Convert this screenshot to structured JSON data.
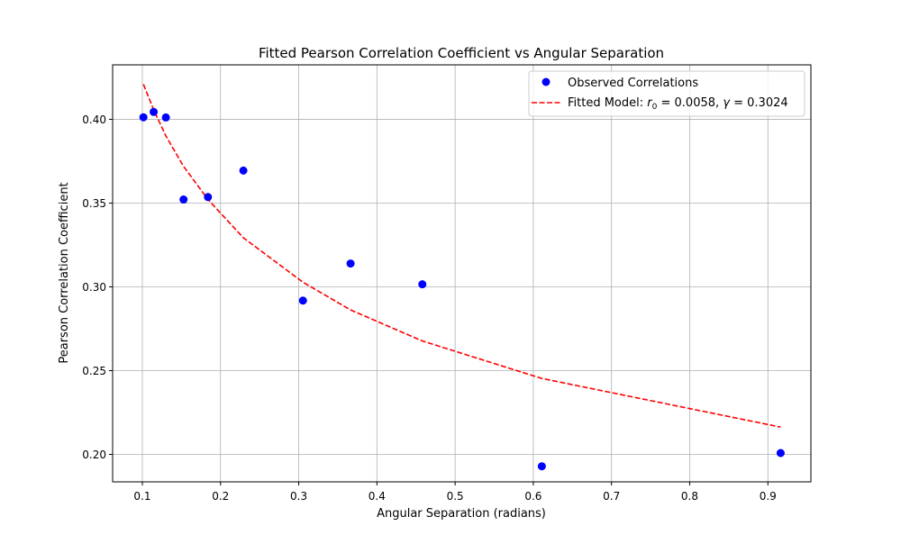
{
  "chart_data": {
    "type": "scatter",
    "title": "Fitted Pearson Correlation Coefficient vs Angular Separation",
    "xlabel": "Angular Separation (radians)",
    "ylabel": "Pearson Correlation Coefficient",
    "xlim": [
      0.062,
      0.955
    ],
    "ylim": [
      0.1836,
      0.4325
    ],
    "xticks": [
      0.1,
      0.2,
      0.3,
      0.4,
      0.5,
      0.6,
      0.7,
      0.8,
      0.9
    ],
    "xtick_labels": [
      "0.1",
      "0.2",
      "0.3",
      "0.4",
      "0.5",
      "0.6",
      "0.7",
      "0.8",
      "0.9"
    ],
    "yticks": [
      0.2,
      0.25,
      0.3,
      0.35,
      0.4
    ],
    "ytick_labels": [
      "0.20",
      "0.25",
      "0.30",
      "0.35",
      "0.40"
    ],
    "grid": true,
    "legend_position": "top-right",
    "series": [
      {
        "name": "Observed Correlations",
        "kind": "scatter",
        "color": "#0000ff",
        "x": [
          0.1014,
          0.1145,
          0.1301,
          0.1527,
          0.1839,
          0.2292,
          0.3054,
          0.3663,
          0.4581,
          0.6109,
          0.9163
        ],
        "y": [
          0.4012,
          0.4044,
          0.4011,
          0.3521,
          0.3536,
          0.3694,
          0.2918,
          0.3139,
          0.3015,
          0.1929,
          0.2008
        ]
      },
      {
        "name": "Fitted Model",
        "kind": "line",
        "style": "dashed",
        "color": "#ff0000",
        "x": [
          0.1014,
          0.1145,
          0.1301,
          0.1527,
          0.1839,
          0.2292,
          0.3054,
          0.3663,
          0.4581,
          0.6109,
          0.9163
        ],
        "y": [
          0.4209,
          0.4056,
          0.3901,
          0.3719,
          0.3522,
          0.3293,
          0.3028,
          0.2862,
          0.2677,
          0.2453,
          0.2163
        ]
      }
    ],
    "legend": [
      {
        "label": "Observed Correlations",
        "marker": "circle",
        "color": "#0000ff"
      },
      {
        "label_prefix": "Fitted Model: ",
        "r_symbol": "r",
        "r_sub": "0",
        "r_value": " = 0.0058, ",
        "gamma_symbol": "γ",
        "gamma_value": " = 0.3024",
        "marker": "dashed-line",
        "color": "#ff0000"
      }
    ]
  }
}
